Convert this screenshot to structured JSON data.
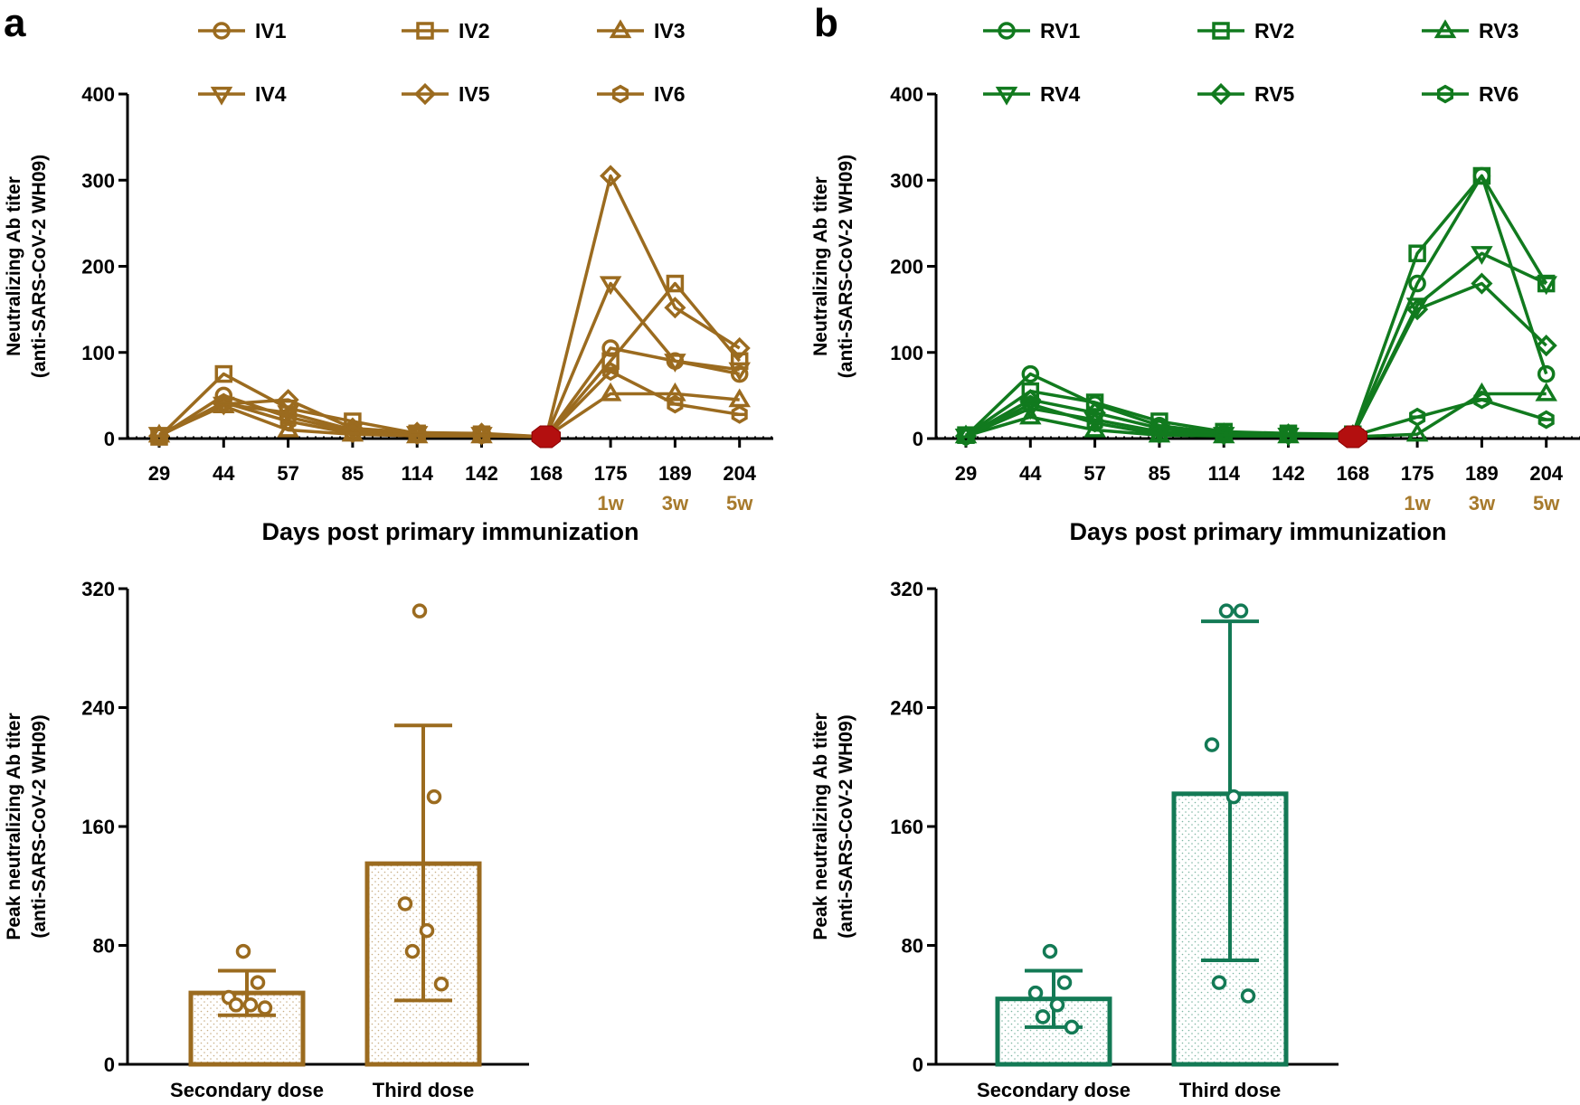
{
  "panels": {
    "a": {
      "letter": "a"
    },
    "b": {
      "letter": "b"
    }
  },
  "chart_data": [
    {
      "id": "a-top",
      "type": "line",
      "color": "#9b6b1f",
      "xlabel": "Days post primary immunization",
      "ylabel_line1": "Neutralizing Ab titer",
      "ylabel_line2": "(anti-SARS-CoV-2 WH09)",
      "ylim": [
        0,
        400
      ],
      "yticks": [
        0,
        100,
        200,
        300,
        400
      ],
      "x": [
        "29",
        "44",
        "57",
        "85",
        "114",
        "142",
        "168",
        "175",
        "189",
        "204"
      ],
      "sub_labels": [
        "",
        "",
        "",
        "",
        "",
        "",
        "",
        "1w",
        "3w",
        "5w"
      ],
      "booster_day": "168",
      "series": [
        {
          "name": "IV1",
          "marker": "circle",
          "values": [
            2,
            50,
            25,
            8,
            5,
            4,
            2,
            105,
            90,
            75
          ]
        },
        {
          "name": "IV2",
          "marker": "square",
          "values": [
            2,
            75,
            35,
            20,
            6,
            5,
            2,
            90,
            180,
            90
          ]
        },
        {
          "name": "IV3",
          "marker": "triangle-up",
          "values": [
            4,
            38,
            10,
            5,
            3,
            3,
            2,
            52,
            52,
            45
          ]
        },
        {
          "name": "IV4",
          "marker": "triangle-down",
          "values": [
            5,
            40,
            30,
            10,
            6,
            5,
            2,
            180,
            90,
            80
          ]
        },
        {
          "name": "IV5",
          "marker": "diamond",
          "values": [
            3,
            40,
            45,
            12,
            7,
            6,
            2,
            305,
            152,
            105
          ]
        },
        {
          "name": "IV6",
          "marker": "hexagon",
          "values": [
            3,
            42,
            20,
            6,
            4,
            4,
            2,
            78,
            40,
            28
          ]
        }
      ]
    },
    {
      "id": "b-top",
      "type": "line",
      "color": "#117a1e",
      "xlabel": "Days post primary immunization",
      "ylabel_line1": "Neutralizing Ab titer",
      "ylabel_line2": "(anti-SARS-CoV-2 WH09)",
      "ylim": [
        0,
        400
      ],
      "yticks": [
        0,
        100,
        200,
        300,
        400
      ],
      "x": [
        "29",
        "44",
        "57",
        "85",
        "114",
        "142",
        "168",
        "175",
        "189",
        "204"
      ],
      "sub_labels": [
        "",
        "",
        "",
        "",
        "",
        "",
        "",
        "1w",
        "3w",
        "5w"
      ],
      "booster_day": "168",
      "series": [
        {
          "name": "RV1",
          "marker": "circle",
          "values": [
            3,
            75,
            40,
            15,
            6,
            5,
            3,
            180,
            305,
            75
          ]
        },
        {
          "name": "RV2",
          "marker": "square",
          "values": [
            4,
            55,
            42,
            20,
            8,
            6,
            5,
            215,
            305,
            180
          ]
        },
        {
          "name": "RV3",
          "marker": "triangle-up",
          "values": [
            3,
            25,
            10,
            4,
            3,
            3,
            2,
            5,
            52,
            52
          ]
        },
        {
          "name": "RV4",
          "marker": "triangle-down",
          "values": [
            3,
            35,
            22,
            8,
            5,
            4,
            3,
            155,
            215,
            180
          ]
        },
        {
          "name": "RV5",
          "marker": "diamond",
          "values": [
            3,
            45,
            30,
            12,
            6,
            5,
            4,
            150,
            180,
            108
          ]
        },
        {
          "name": "RV6",
          "marker": "hexagon",
          "values": [
            2,
            40,
            18,
            5,
            4,
            4,
            3,
            25,
            45,
            22
          ]
        }
      ]
    },
    {
      "id": "a-bottom",
      "type": "bar",
      "color": "#9b6b1f",
      "ylabel_line1": "Peak neutralizing Ab titer",
      "ylabel_line2": "(anti-SARS-CoV-2 WH09)",
      "ylim": [
        0,
        320
      ],
      "yticks": [
        0,
        80,
        160,
        240,
        320
      ],
      "categories": [
        "Secondary dose",
        "Third dose"
      ],
      "values": [
        48,
        135
      ],
      "error_low": [
        33,
        43
      ],
      "error_high": [
        63,
        228
      ],
      "points": [
        [
          76,
          55,
          45,
          40,
          40,
          38
        ],
        [
          305,
          180,
          108,
          90,
          76,
          54
        ]
      ]
    },
    {
      "id": "b-bottom",
      "type": "bar",
      "color": "#137a55",
      "ylabel_line1": "Peak neutralizing Ab titer",
      "ylabel_line2": "(anti-SARS-CoV-2 WH09)",
      "ylim": [
        0,
        320
      ],
      "yticks": [
        0,
        80,
        160,
        240,
        320
      ],
      "categories": [
        "Secondary dose",
        "Third dose"
      ],
      "values": [
        44,
        182
      ],
      "error_low": [
        25,
        70
      ],
      "error_high": [
        63,
        298
      ],
      "points": [
        [
          76,
          55,
          48,
          40,
          32,
          25
        ],
        [
          305,
          305,
          215,
          180,
          55,
          46
        ]
      ]
    }
  ]
}
